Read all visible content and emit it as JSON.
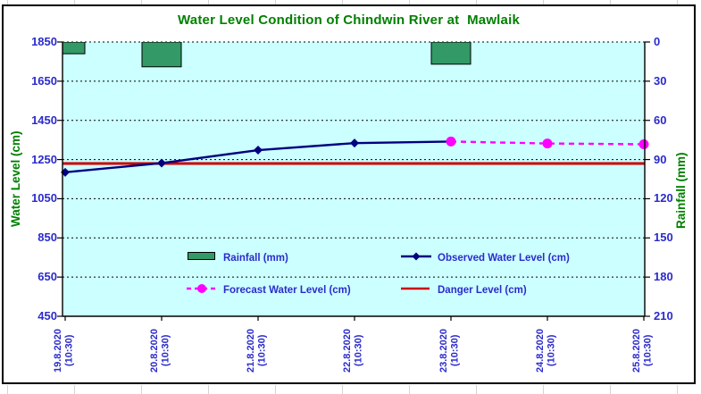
{
  "canvas": {
    "bg": "#FFFFFF",
    "excel_gridline_color": "#D4D4D4"
  },
  "chart_data": {
    "type": "combo",
    "title": "Water Level Condition of Chindwin River at  Mawlaik",
    "plot_bg": "#CCFFFF",
    "grid": "dotted-black",
    "legend_position": "inside-plot-bottom",
    "categories": [
      {
        "date": "19.8.2020",
        "time": "(10:30)"
      },
      {
        "date": "20.8.2020",
        "time": "(10:30)"
      },
      {
        "date": "21.8.2020",
        "time": "(10:30)"
      },
      {
        "date": "22.8.2020",
        "time": "(10:30)"
      },
      {
        "date": "23.8.2020",
        "time": "(10:30)"
      },
      {
        "date": "24.8.2020",
        "time": "(10:30)"
      },
      {
        "date": "25.8.2020",
        "time": "(10:30)"
      }
    ],
    "left_axis": {
      "title": "Water Level (cm)",
      "min": 450,
      "max": 1850,
      "tick_step": 200,
      "ticks": [
        1850,
        1650,
        1450,
        1250,
        1050,
        850,
        650,
        450
      ]
    },
    "right_axis": {
      "title": "Rainfall (mm)",
      "min": 0,
      "max": 210,
      "tick_step": 30,
      "inverted": true,
      "ticks": [
        0,
        30,
        60,
        90,
        120,
        150,
        180,
        210
      ]
    },
    "series": [
      {
        "name": "Rainfall (mm)",
        "type": "bar",
        "axis": "right",
        "color": "#339966",
        "border_color": "#000000",
        "values": [
          9,
          19,
          0,
          0,
          17,
          0,
          0
        ]
      },
      {
        "name": "Observed Water Level (cm)",
        "type": "line",
        "axis": "left",
        "color": "#000080",
        "marker": "diamond",
        "line_style": "solid",
        "values": [
          1185,
          1232,
          1298,
          1334,
          1342,
          null,
          null
        ]
      },
      {
        "name": "Forecast Water Level (cm)",
        "type": "line",
        "axis": "left",
        "color": "#FF00FF",
        "marker": "circle",
        "line_style": "dashed",
        "values": [
          null,
          null,
          null,
          null,
          1342,
          1332,
          1328
        ]
      },
      {
        "name": "Danger Level (cm)",
        "type": "constant-line",
        "axis": "left",
        "color": "#CC0000",
        "value": 1230
      }
    ],
    "text_colors": {
      "title_green": "#008000",
      "label_blue": "#2B2BCC"
    }
  }
}
